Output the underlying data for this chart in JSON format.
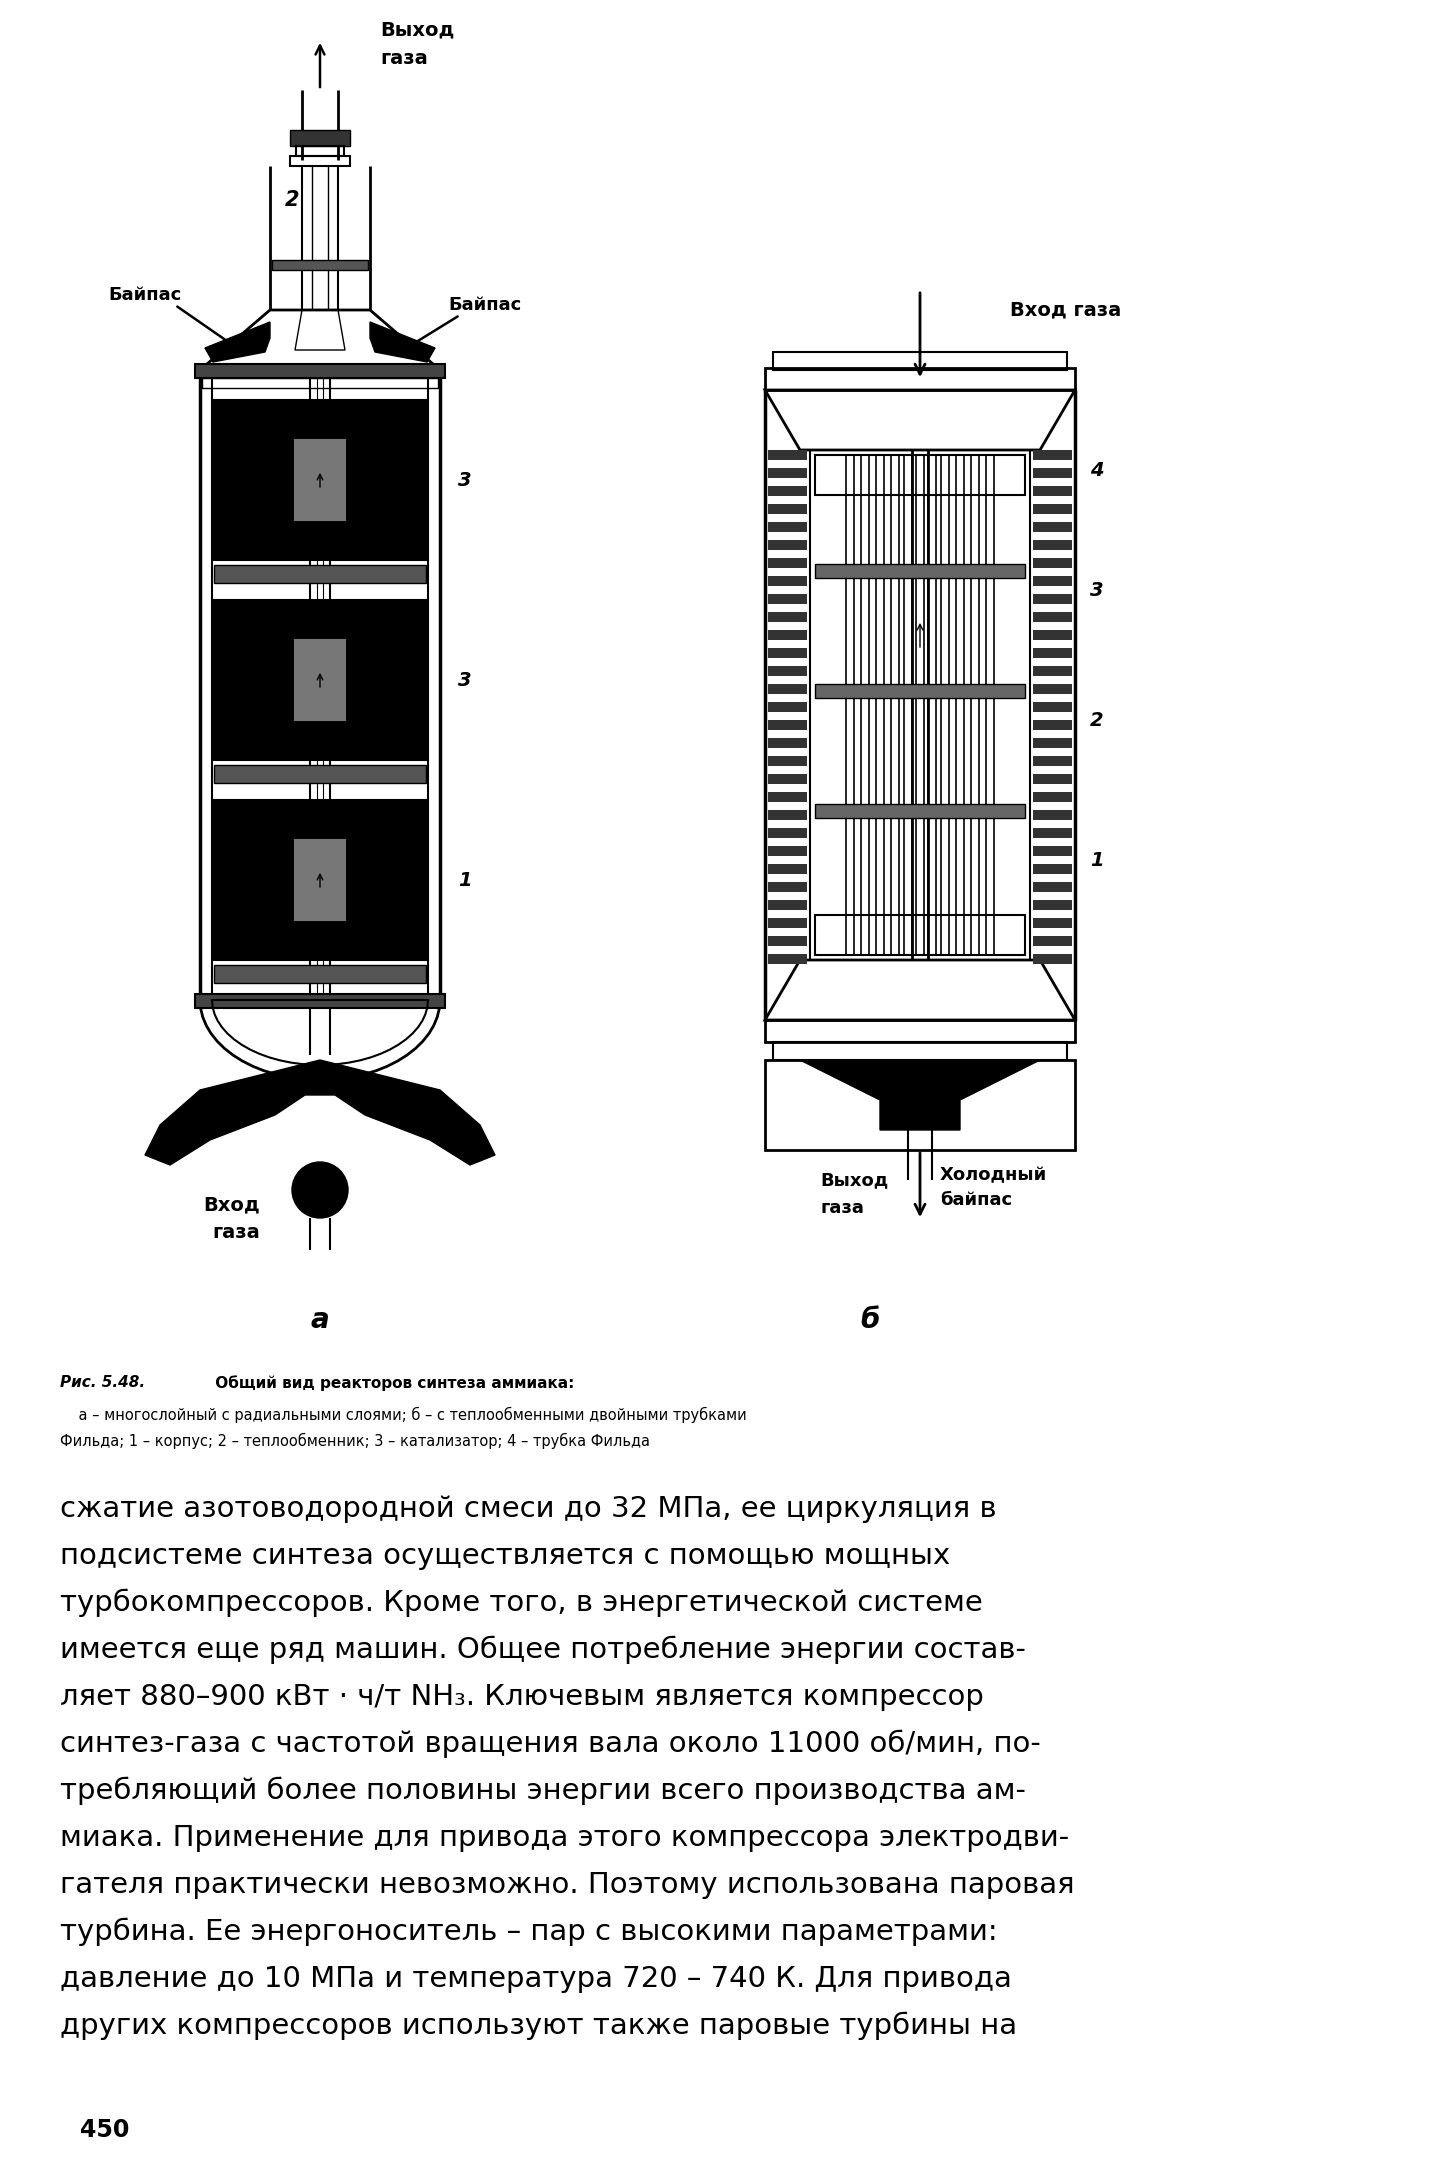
{
  "bg_color": "#ffffff",
  "page_width": 14.31,
  "page_height": 21.66,
  "dpi": 100,
  "label_a": "а",
  "label_b": "б",
  "fig_caption_italic_bold": "Рис. 5.48.",
  "fig_caption_bold": " Общий вид реакторов синтеза аммиака:",
  "fig_caption_line2": "    а – многослойный с радиальными слоями; б – с теплообменными двойными трубками",
  "fig_caption_line3": "Фильда; 1 – корпус; 2 – теплообменник; 3 – катализатор; 4 – трубка Фильда",
  "body_lines": [
    "сжатие азотоводородной смеси до 32 МПа, ее циркуляция в",
    "подсистеме синтеза осуществляется с помощью мощных",
    "турбокомпрессоров. Кроме того, в энергетической системе",
    "имеется еще ряд машин. Общее потребление энергии состав-",
    "ляет 880–900 кВт · ч/т NH₃. Ключевым является компрессор",
    "синтез-газа с частотой вращения вала около 11000 об/мин, по-",
    "требляющий более половины энергии всего производства ам-",
    "миака. Применение для привода этого компрессора электродви-",
    "гателя практически невозможно. Поэтому использована паровая",
    "турбина. Ее энергоноситель – пар с высокими параметрами:",
    "давление до 10 МПа и температура 720 – 740 К. Для привода",
    "других компрессоров используют также паровые турбины на"
  ],
  "page_number": "450"
}
